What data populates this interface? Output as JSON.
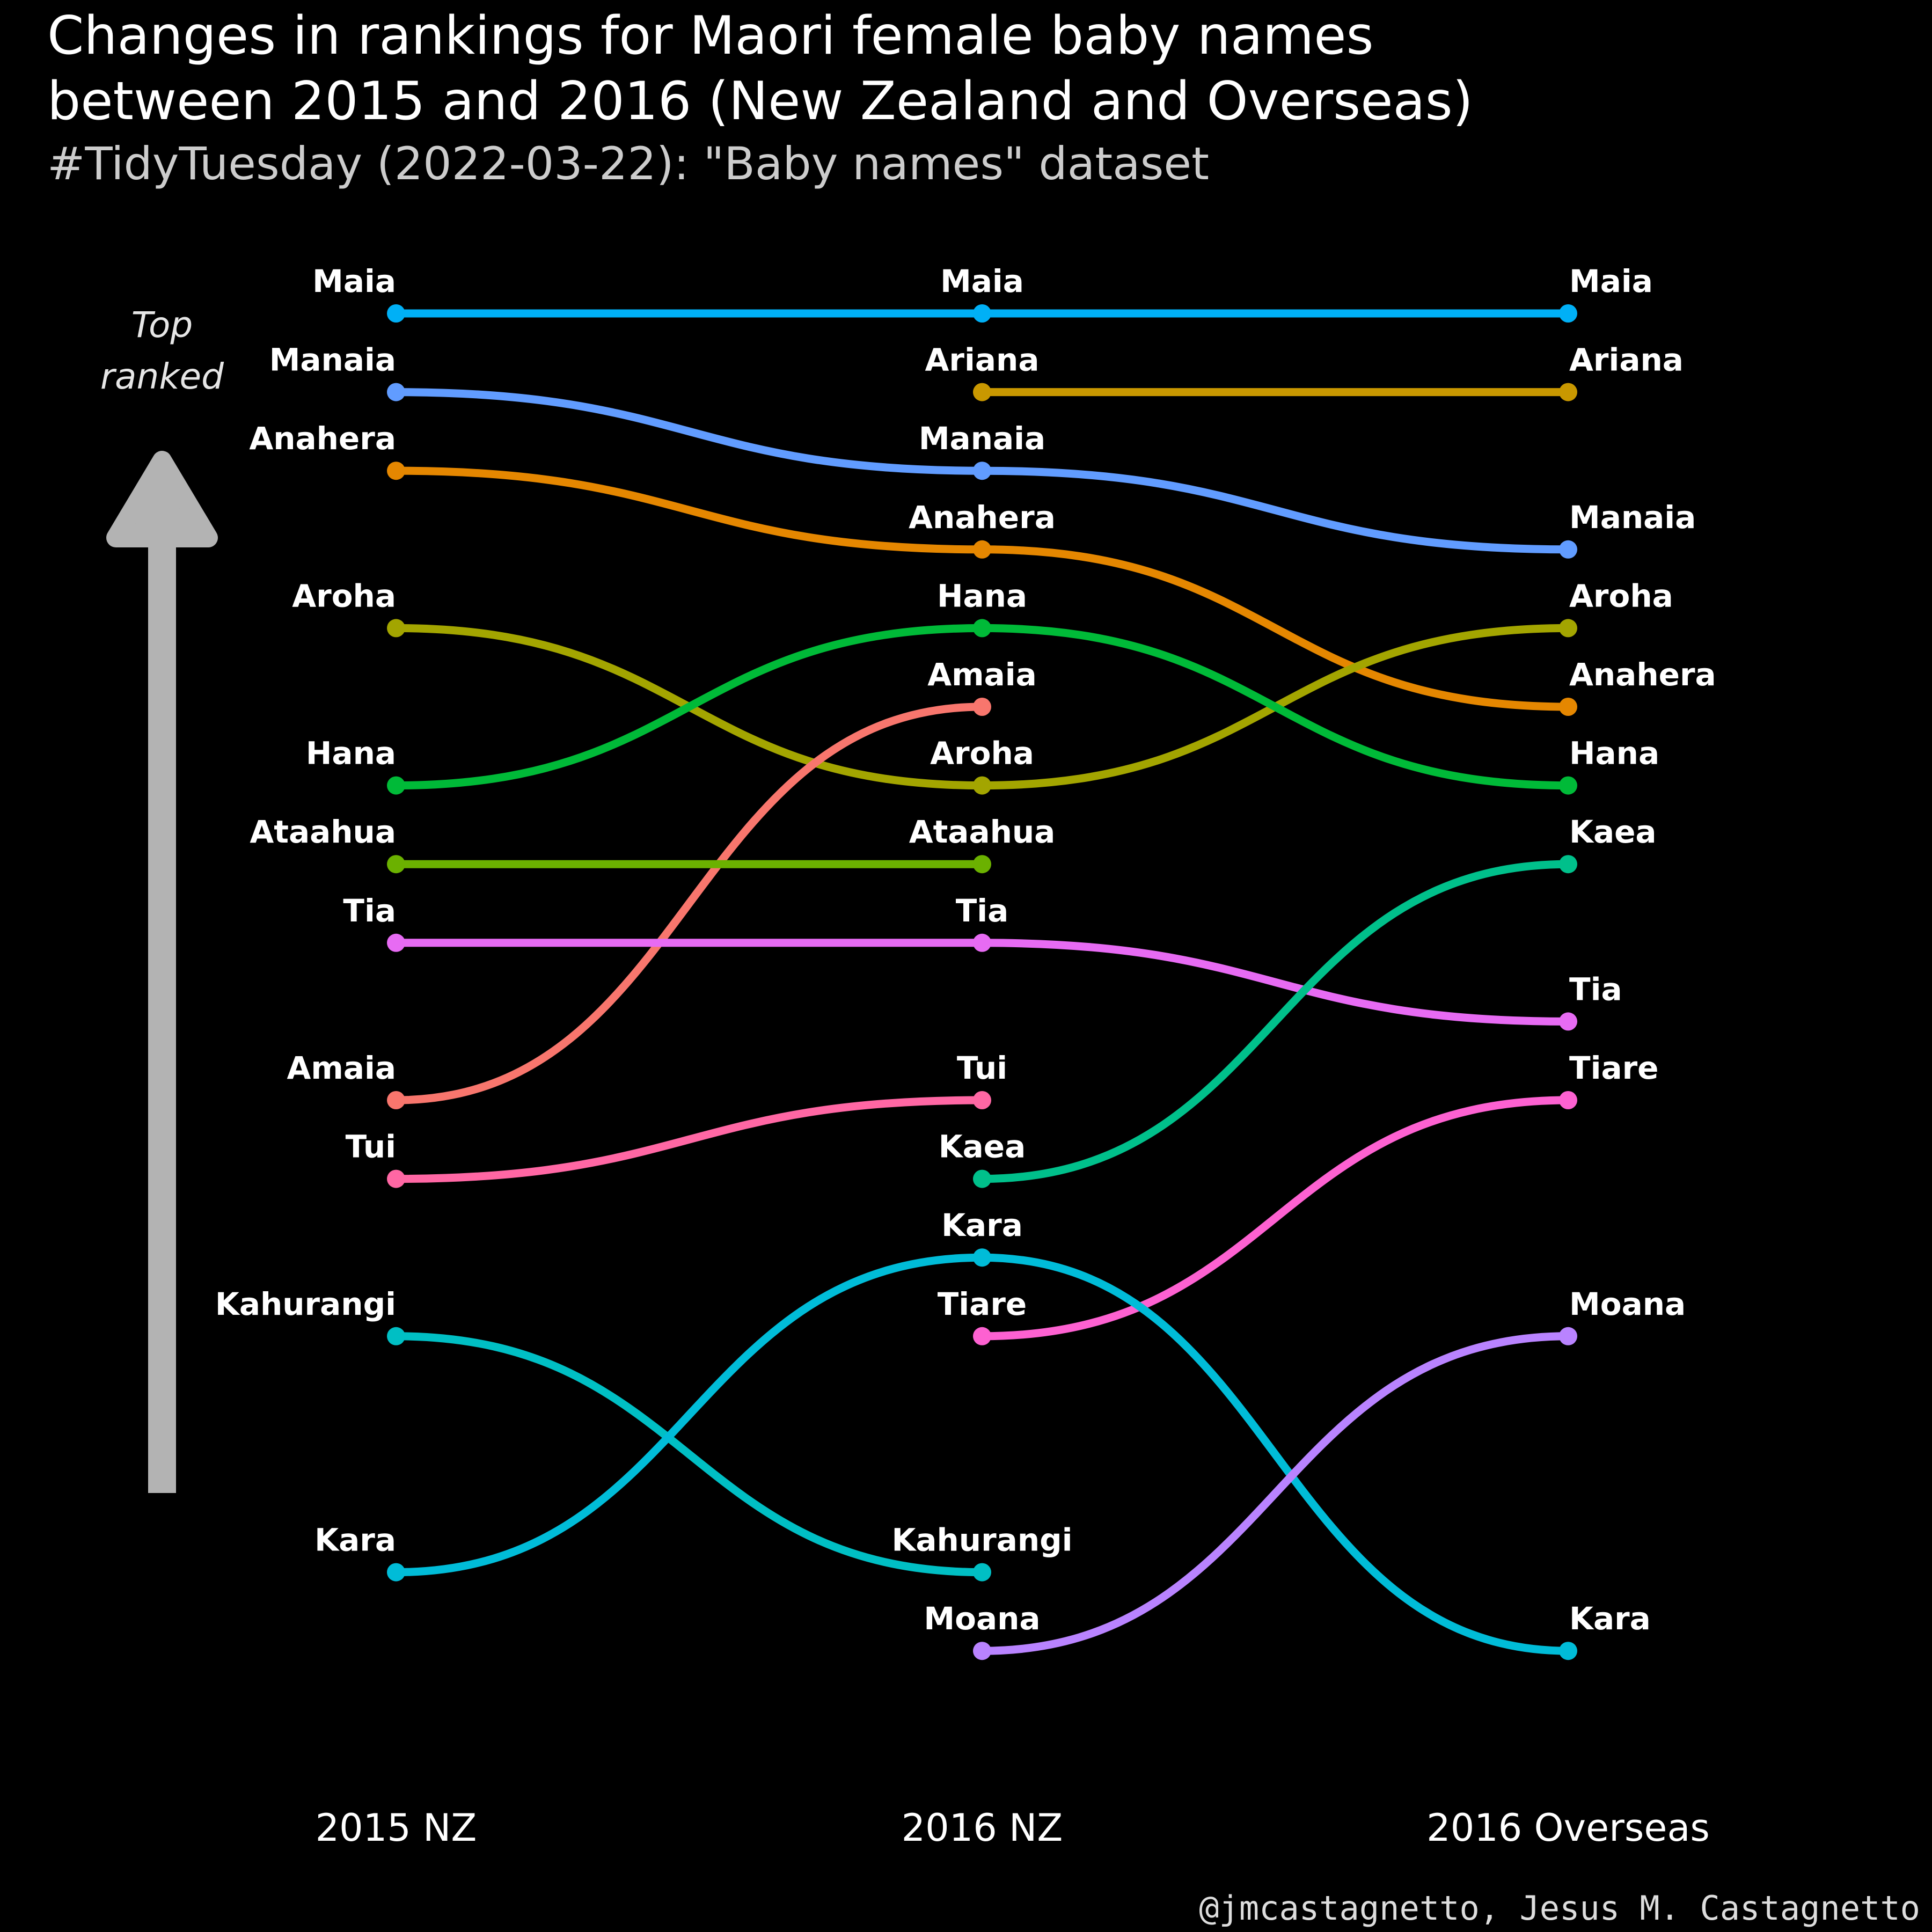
{
  "title_lines": [
    "Changes in rankings for Maori female baby names",
    "between 2015 and 2016 (New Zealand and Overseas)"
  ],
  "subtitle": "#TidyTuesday (2022-03-22): \"Baby names\" dataset",
  "caption": "@jmcastagnetto, Jesus M. Castagnetto",
  "arrow_label": [
    "Top",
    "ranked"
  ],
  "chart_data": {
    "type": "bump",
    "title": "Changes in rankings for Maori female baby names between 2015 and 2016 (New Zealand and Overseas)",
    "categories": [
      "2015 NZ",
      "2016 NZ",
      "2016 Overseas"
    ],
    "y_axis": "rank (1 = top ranked)",
    "ylim": [
      1,
      19
    ],
    "grid": false,
    "legend": "none",
    "series": [
      {
        "name": "Maia",
        "ranks": [
          1,
          1,
          1
        ],
        "color": "#00B0F6"
      },
      {
        "name": "Manaia",
        "ranks": [
          2,
          3,
          4
        ],
        "color": "#619CFF"
      },
      {
        "name": "Anahera",
        "ranks": [
          3,
          4,
          6
        ],
        "color": "#E58700"
      },
      {
        "name": "Ariana",
        "ranks": [
          null,
          2,
          2
        ],
        "color": "#C99800"
      },
      {
        "name": "Aroha",
        "ranks": [
          5,
          7,
          5
        ],
        "color": "#A3A500"
      },
      {
        "name": "Hana",
        "ranks": [
          7,
          5,
          7
        ],
        "color": "#00BA38"
      },
      {
        "name": "Amaia",
        "ranks": [
          11,
          6,
          null
        ],
        "color": "#F8766D"
      },
      {
        "name": "Ataahua",
        "ranks": [
          8,
          8,
          null
        ],
        "color": "#6BB100"
      },
      {
        "name": "Tia",
        "ranks": [
          9,
          9,
          10
        ],
        "color": "#E76BF3"
      },
      {
        "name": "Tui",
        "ranks": [
          12,
          11,
          null
        ],
        "color": "#FF67A4"
      },
      {
        "name": "Kaea",
        "ranks": [
          null,
          12,
          8
        ],
        "color": "#00C08B"
      },
      {
        "name": "Tiare",
        "ranks": [
          null,
          14,
          11
        ],
        "color": "#FD61D1"
      },
      {
        "name": "Kahurangi",
        "ranks": [
          14,
          17,
          null
        ],
        "color": "#00BFC4"
      },
      {
        "name": "Kara",
        "ranks": [
          17,
          13,
          18
        ],
        "color": "#00BCD8"
      },
      {
        "name": "Moana",
        "ranks": [
          null,
          18,
          14
        ],
        "color": "#B983FF"
      }
    ]
  }
}
